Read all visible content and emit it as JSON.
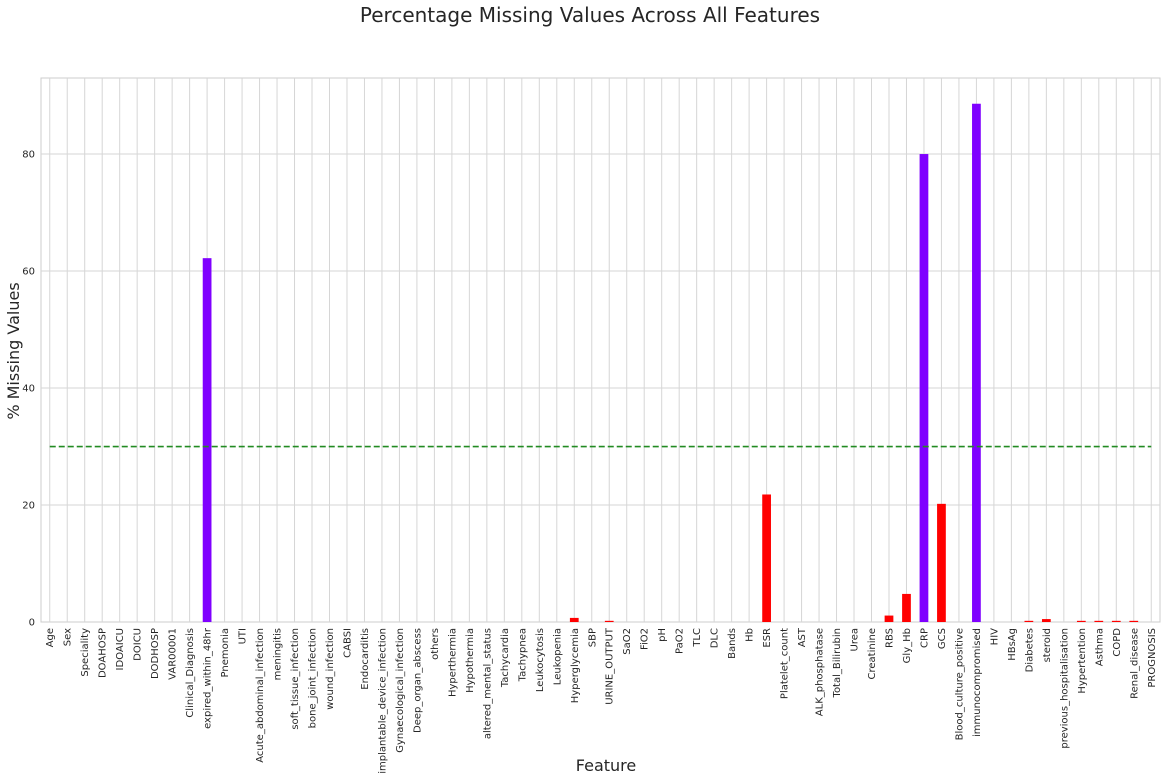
{
  "chart_data": {
    "type": "bar",
    "title": "Percentage Missing Values Across All Features",
    "xlabel": "Feature",
    "ylabel": "% Missing Values",
    "ylim": [
      0,
      93
    ],
    "yticks": [
      0,
      20,
      40,
      60,
      80
    ],
    "grid": true,
    "threshold": {
      "value": 30,
      "color": "#228b22",
      "style": "dashed"
    },
    "colors": {
      "above_threshold": "#7f00ff",
      "below_threshold": "#ff0000"
    },
    "categories": [
      "Age",
      "Sex",
      "Speciality",
      "DOAHOSP",
      "IDOAICU",
      "DOICU",
      "DODHOSP",
      "VAR00001",
      "Clinical_Diagnosis",
      "expired_within_48hr",
      "Pnemonia",
      "UTI",
      "Acute_abdominal_infection",
      "meningitis",
      "soft_tissue_infection",
      "bone_joint_infection",
      "wound_infection",
      "CABSI",
      "Endocarditis",
      "implantable_device_infection",
      "Gynaecological_infection",
      "Deep_organ_abscess",
      "others",
      "Hyperthermia",
      "Hypothermia",
      "altered_mental_status",
      "Tachycardia",
      "Tachypnea",
      "Leukocytosis",
      "Leukopenia",
      "Hyperglycemia",
      "SBP",
      "URINE_OUTPUT",
      "SaO2",
      "FiO2",
      "pH",
      "PaO2",
      "TLC",
      "DLC",
      "Bands",
      "Hb",
      "ESR",
      "Platelet_count",
      "AST",
      "ALK_phosphatase",
      "Total_Bilirubin",
      "Urea",
      "Creatinine",
      "RBS",
      "Gly_Hb",
      "CRP",
      "GCS",
      "Blood_culture_positive",
      "immunocompromised",
      "HIV",
      "HBsAg",
      "Diabetes",
      "steroid",
      "previous_hospitalisation",
      "Hypertention",
      "Asthma",
      "COPD",
      "Renal_disease",
      "PROGNOSIS"
    ],
    "values": [
      0,
      0,
      0,
      0,
      0,
      0,
      0,
      0,
      0,
      62.2,
      0,
      0,
      0,
      0,
      0,
      0,
      0,
      0,
      0,
      0,
      0,
      0,
      0,
      0,
      0,
      0,
      0,
      0,
      0,
      0,
      0.7,
      0,
      0.2,
      0,
      0,
      0,
      0,
      0,
      0,
      0,
      0,
      21.8,
      0,
      0,
      0,
      0,
      0,
      0,
      1.1,
      4.8,
      80,
      20.2,
      0,
      88.6,
      0,
      0,
      0.2,
      0.5,
      0,
      0.2,
      0.2,
      0.2,
      0.2,
      0
    ]
  }
}
